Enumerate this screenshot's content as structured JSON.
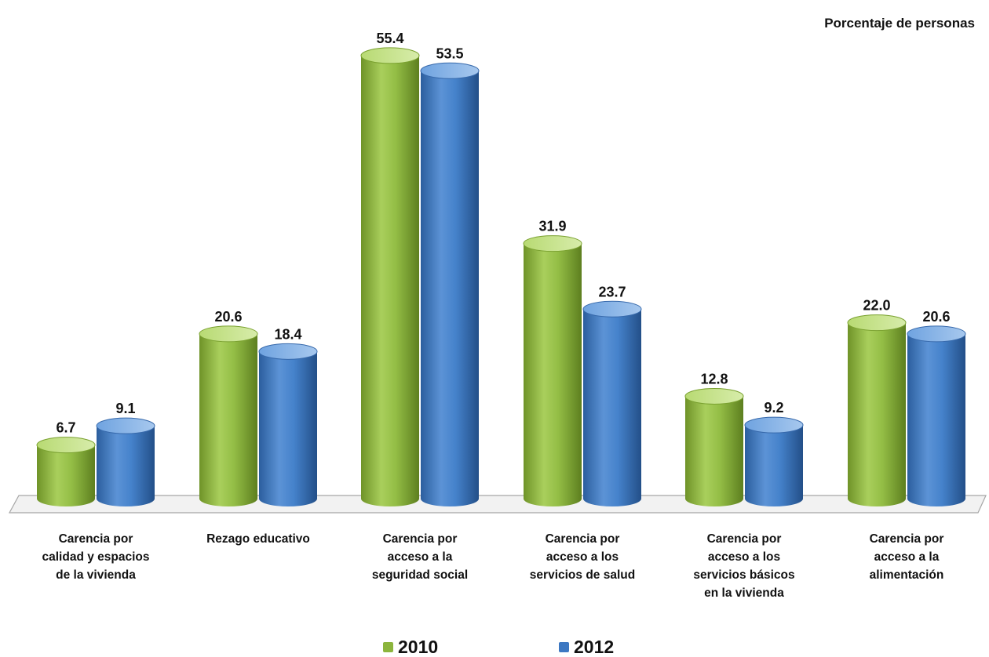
{
  "chart_data": {
    "type": "bar",
    "unit_label": "Porcentaje de personas",
    "categories": [
      "Carencia por\ncalidad y espacios\nde la vivienda",
      "Rezago educativo",
      "Carencia por\nacceso a la\nseguridad social",
      "Carencia por\nacceso a los\nservicios de salud",
      "Carencia por\nacceso a los\nservicios básicos\nen la vivienda",
      "Carencia por\nacceso a la\nalimentación"
    ],
    "series": [
      {
        "name": "2010",
        "values": [
          6.7,
          20.6,
          55.4,
          31.9,
          12.8,
          22.0
        ],
        "labels": [
          "6.7",
          "20.6",
          "55.4",
          "31.9",
          "12.8",
          "22.0"
        ],
        "color": "#8cb53d"
      },
      {
        "name": "2012",
        "values": [
          9.1,
          18.4,
          53.5,
          23.7,
          9.2,
          20.6
        ],
        "labels": [
          "9.1",
          "18.4",
          "53.5",
          "23.7",
          "9.2",
          "20.6"
        ],
        "color": "#3d78c2"
      }
    ],
    "ylim": [
      0,
      60
    ],
    "grid": false,
    "legend_position": "bottom",
    "xlabel": "",
    "ylabel": ""
  }
}
